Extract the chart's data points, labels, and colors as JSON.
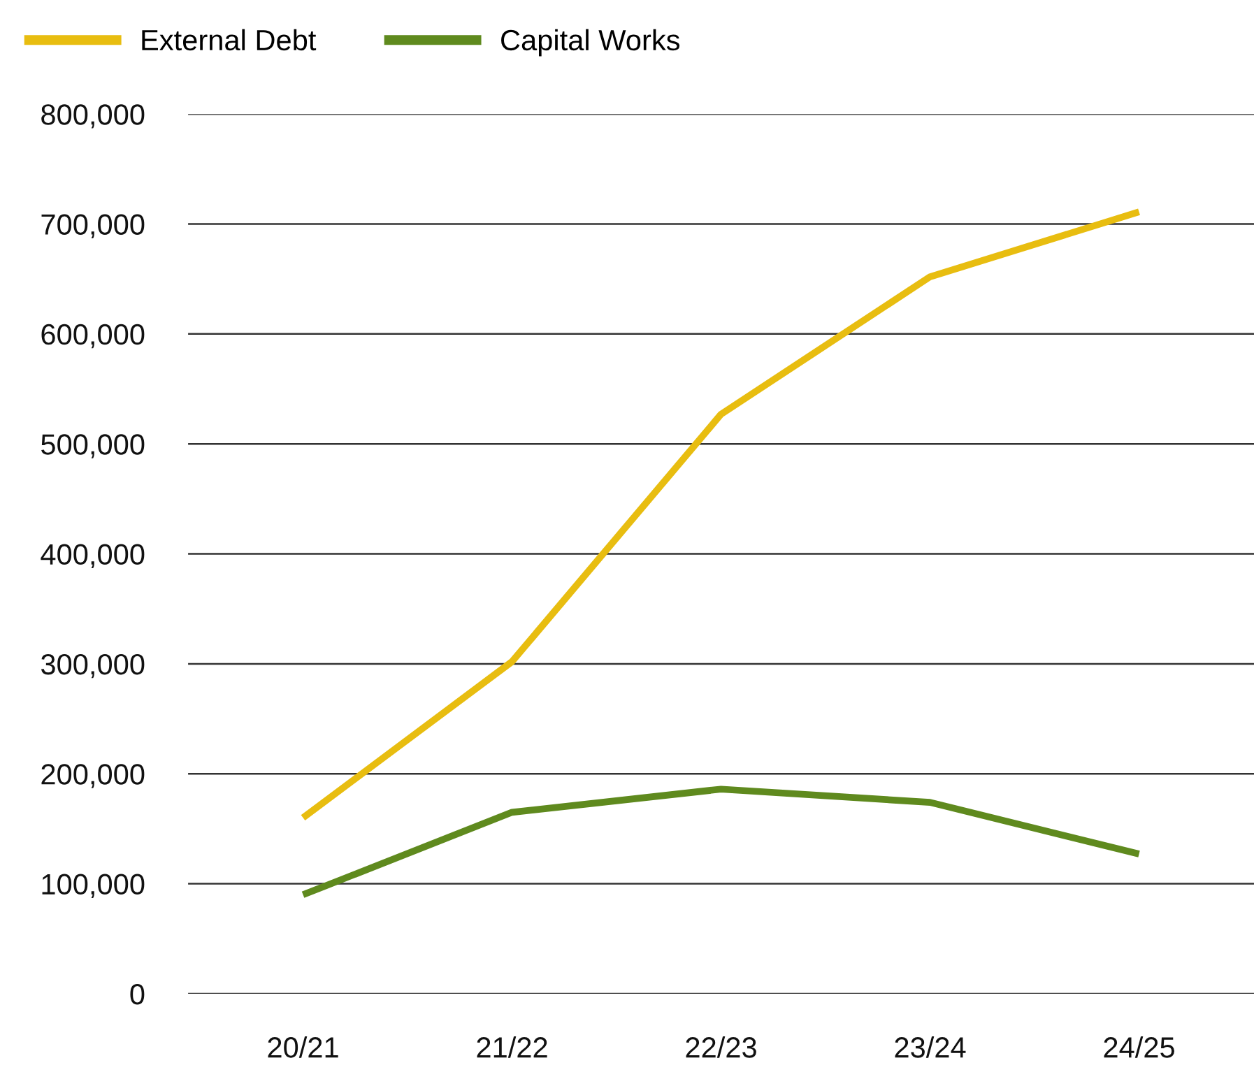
{
  "chart_data": {
    "type": "line",
    "categories": [
      "20/21",
      "21/22",
      "22/23",
      "23/24",
      "24/25"
    ],
    "series": [
      {
        "name": "External Debt",
        "color": "#e8bd10",
        "values": [
          160000,
          302000,
          527000,
          652000,
          711000
        ]
      },
      {
        "name": "Capital Works",
        "color": "#5f8a1e",
        "values": [
          90000,
          165000,
          186000,
          174000,
          127000
        ]
      }
    ],
    "ylim": [
      0,
      800000
    ],
    "yticks": [
      {
        "value": 0,
        "label": "0"
      },
      {
        "value": 100000,
        "label": "100,000"
      },
      {
        "value": 200000,
        "label": "200,000"
      },
      {
        "value": 300000,
        "label": "300,000"
      },
      {
        "value": 400000,
        "label": "400,000"
      },
      {
        "value": 500000,
        "label": "500,000"
      },
      {
        "value": 600000,
        "label": "600,000"
      },
      {
        "value": 700000,
        "label": "700,000"
      },
      {
        "value": 800000,
        "label": "800,000"
      }
    ],
    "grid": "y",
    "legend": "top left",
    "marker": "none",
    "line_style": "solid"
  }
}
